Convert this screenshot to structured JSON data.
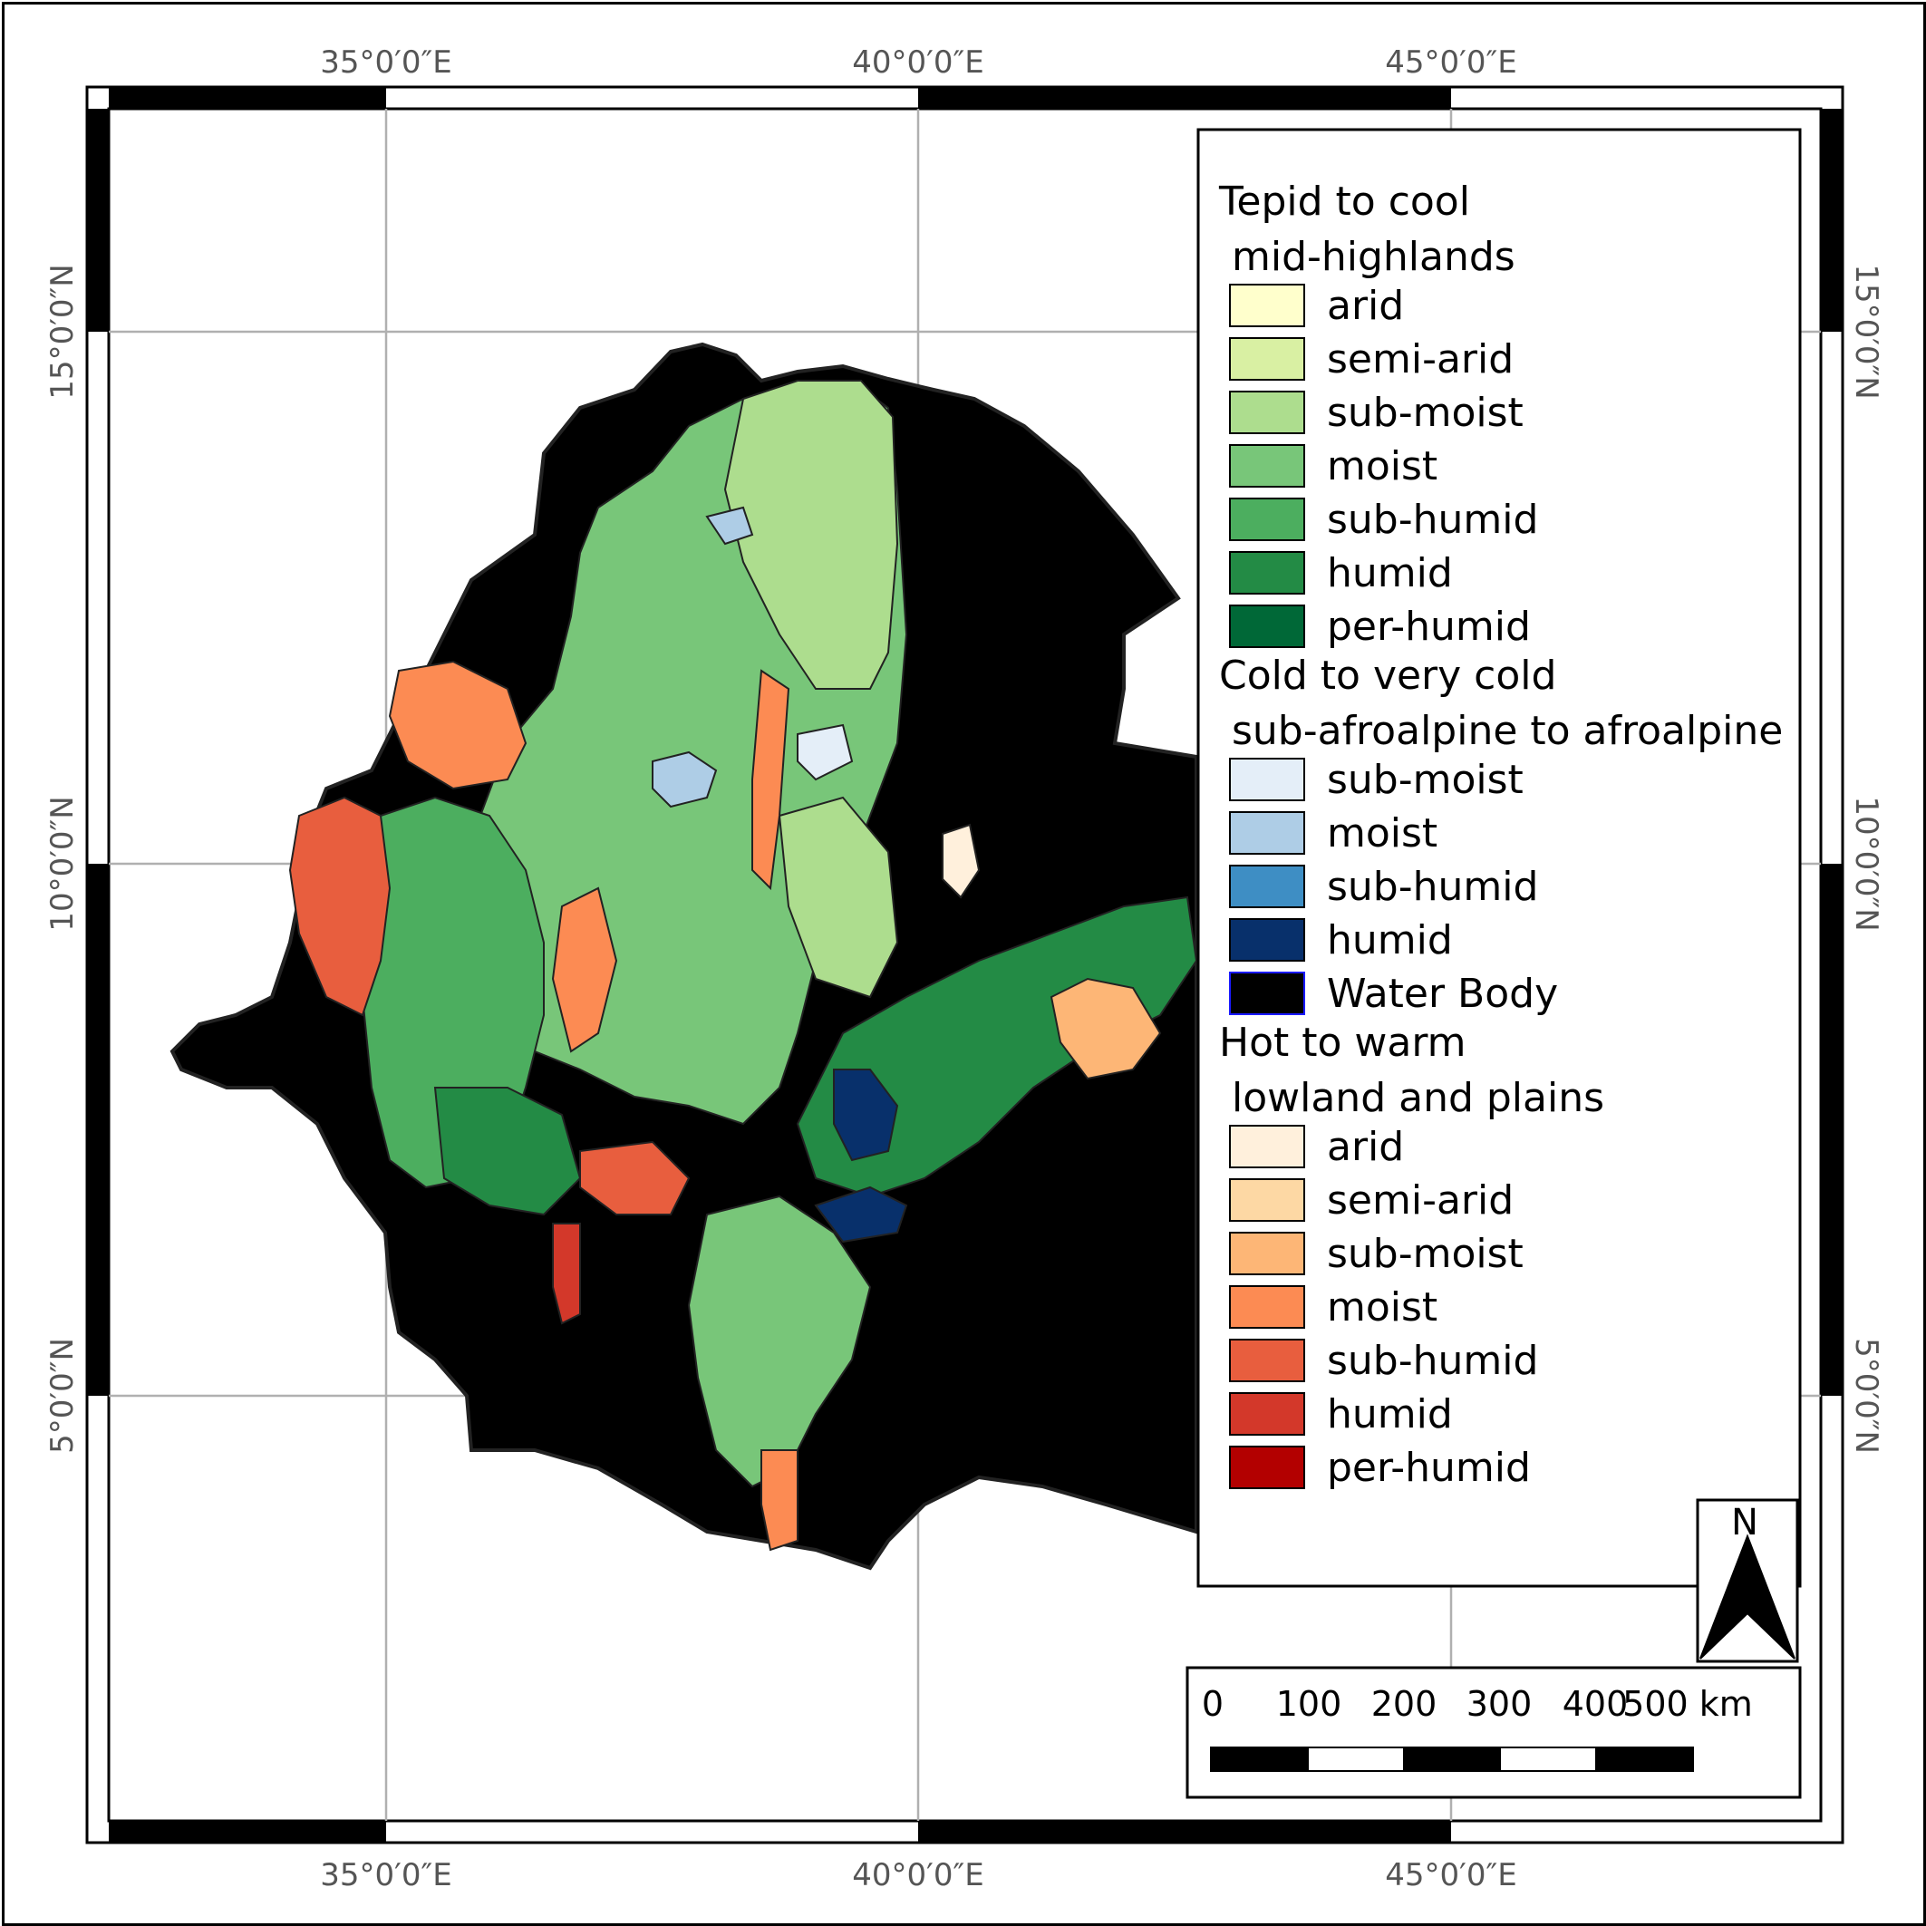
{
  "map": {
    "graticule": {
      "top_labels": [
        "35°0′0″E",
        "40°0′0″E",
        "45°0′0″E"
      ],
      "bottom_labels": [
        "35°0′0″E",
        "40°0′0″E",
        "45°0′0″E"
      ],
      "left_labels": [
        "15°0′0″N",
        "10°0′0″N",
        "5°0′0″N"
      ],
      "right_labels": [
        "15°0′0″N",
        "10°0′0″N",
        "5°0′0″N"
      ]
    },
    "legend": {
      "groups": [
        {
          "title_lines": [
            "Tepid to cool",
            " mid-highlands"
          ],
          "items": [
            {
              "label": "arid",
              "color": "#ffffcc"
            },
            {
              "label": "semi-arid",
              "color": "#d9f0a3"
            },
            {
              "label": "sub-moist",
              "color": "#addd8e"
            },
            {
              "label": "moist",
              "color": "#78c679"
            },
            {
              "label": "sub-humid",
              "color": "#4cae5f"
            },
            {
              "label": "humid",
              "color": "#238b45"
            },
            {
              "label": "per-humid",
              "color": "#006837"
            }
          ]
        },
        {
          "title_lines": [
            "Cold to very cold",
            " sub-afroalpine to afroalpine"
          ],
          "items": [
            {
              "label": "sub-moist",
              "color": "#e4eef8"
            },
            {
              "label": "moist",
              "color": "#aecde6"
            },
            {
              "label": "sub-humid",
              "color": "#3e8ec4"
            },
            {
              "label": "humid",
              "color": "#08306b"
            },
            {
              "label": "Water Body",
              "color": "#000000"
            }
          ]
        },
        {
          "title_lines": [
            "Hot to warm",
            " lowland and plains"
          ],
          "items": [
            {
              "label": "arid",
              "color": "#fff0dc"
            },
            {
              "label": "semi-arid",
              "color": "#fdd8a4"
            },
            {
              "label": "sub-moist",
              "color": "#fdb676"
            },
            {
              "label": "moist",
              "color": "#fc8b53"
            },
            {
              "label": "sub-humid",
              "color": "#e85e3e"
            },
            {
              "label": "humid",
              "color": "#d3382a"
            },
            {
              "label": "per-humid",
              "color": "#b30000"
            }
          ]
        }
      ]
    },
    "north_arrow": {
      "label": "N"
    },
    "scale_bar": {
      "labels": [
        "0",
        "100",
        "200",
        "300",
        "400",
        "500 km"
      ]
    },
    "colors": {
      "background_region": "#000000",
      "graticule_line": "#b0b0b0",
      "coordinate_text": "#555555"
    }
  }
}
